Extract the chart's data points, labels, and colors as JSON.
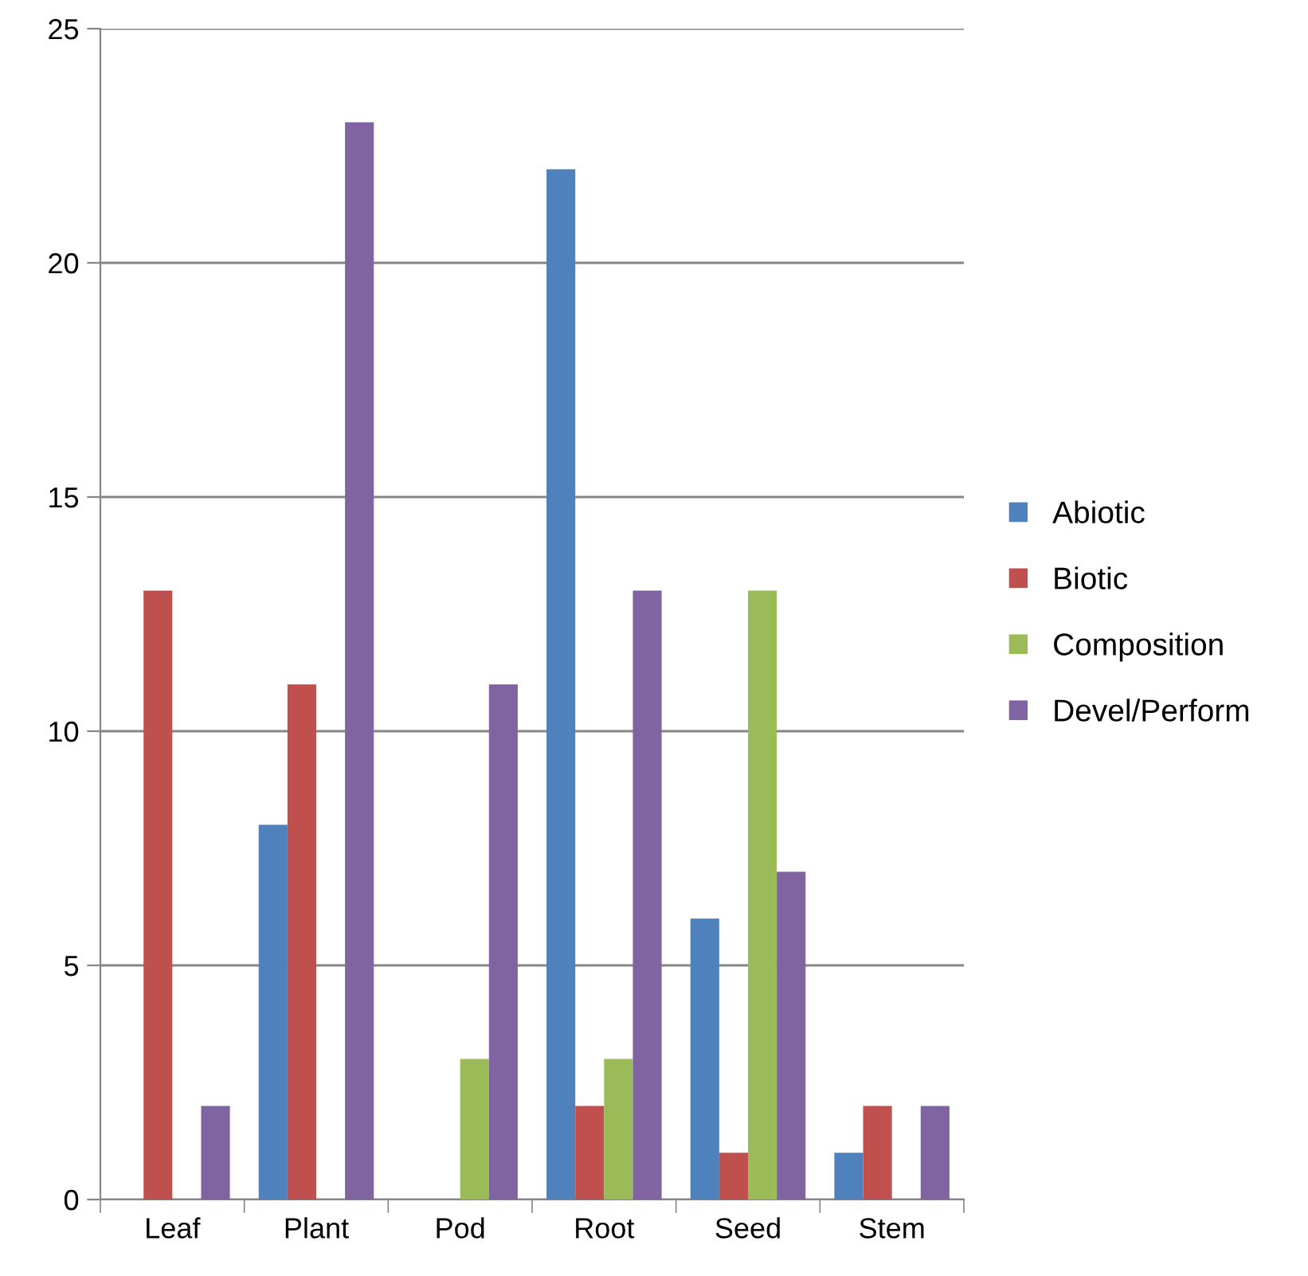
{
  "chart_data": {
    "type": "bar",
    "categories": [
      "Leaf",
      "Plant",
      "Pod",
      "Root",
      "Seed",
      "Stem"
    ],
    "series": [
      {
        "name": "Abiotic",
        "color": "#4f81bd",
        "values": [
          0,
          8,
          0,
          22,
          6,
          1
        ]
      },
      {
        "name": "Biotic",
        "color": "#c0504d",
        "values": [
          13,
          11,
          0,
          2,
          1,
          2
        ]
      },
      {
        "name": "Composition",
        "color": "#9bbb59",
        "values": [
          0,
          0,
          3,
          3,
          13,
          0
        ]
      },
      {
        "name": "Devel/Perform",
        "color": "#8064a2",
        "values": [
          2,
          23,
          11,
          13,
          7,
          2
        ]
      }
    ],
    "ylim": [
      0,
      25
    ],
    "yticks": [
      0,
      5,
      10,
      15,
      20,
      25
    ],
    "grid": "y",
    "legend": "right"
  }
}
